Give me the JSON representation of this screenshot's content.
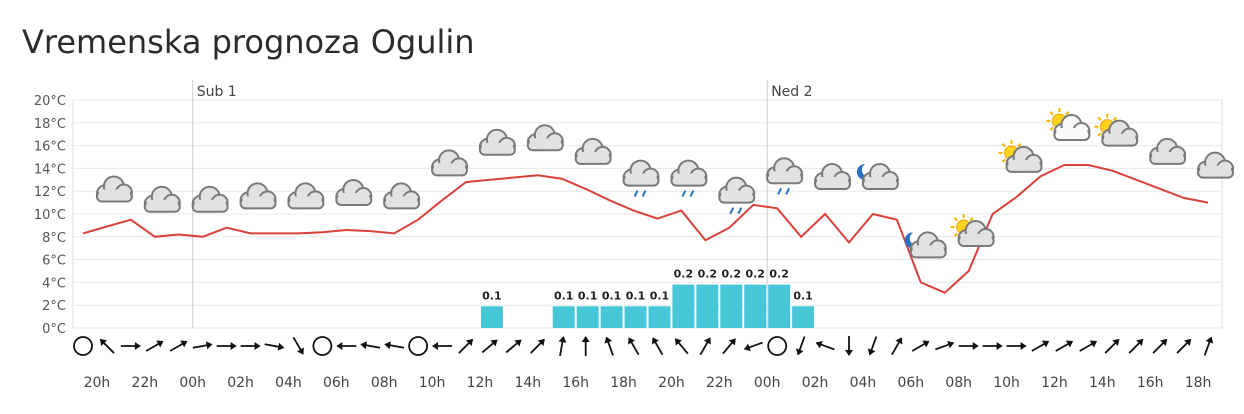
{
  "chart_data": {
    "type": "weather",
    "title": "Vremenska prognoza Ogulin",
    "days": [
      {
        "label": "Sub 1",
        "index": 5
      },
      {
        "label": "Ned 2",
        "index": 29
      }
    ],
    "categories": [
      null,
      "20h",
      null,
      "22h",
      null,
      "00h",
      null,
      "02h",
      null,
      "04h",
      null,
      "06h",
      null,
      "08h",
      null,
      "10h",
      null,
      "12h",
      null,
      "14h",
      null,
      "16h",
      null,
      "18h",
      null,
      "20h",
      null,
      "22h",
      null,
      "00h",
      null,
      "02h",
      null,
      "04h",
      null,
      "06h",
      null,
      "08h",
      null,
      "10h",
      null,
      "12h",
      null,
      "14h",
      null,
      "16h",
      null,
      "18h"
    ],
    "series": [
      {
        "name": "temperature",
        "color": "#d9413a",
        "values": [
          8.3,
          8.9,
          9.5,
          8.0,
          8.2,
          8.0,
          8.8,
          8.3,
          8.3,
          8.3,
          8.4,
          8.6,
          8.5,
          8.3,
          9.5,
          11.2,
          12.8,
          13.0,
          13.2,
          13.4,
          13.1,
          12.2,
          11.2,
          10.3,
          9.6,
          10.3,
          7.7,
          8.8,
          10.8,
          10.5,
          8.0,
          10.0,
          7.5,
          10.0,
          9.5,
          4.0,
          3.1,
          5.0,
          10.0,
          11.5,
          13.3,
          14.3,
          14.3,
          13.8,
          13.0,
          12.2,
          11.4,
          11.0
        ]
      },
      {
        "name": "precipitation",
        "color": "#47c6d8",
        "axis": "y2",
        "values": [
          0,
          0,
          0,
          0,
          0,
          0,
          0,
          0,
          0,
          0,
          0,
          0,
          0,
          0,
          0,
          0,
          0,
          0.1,
          0,
          0,
          0.1,
          0.1,
          0.1,
          0.1,
          0.1,
          0.2,
          0.2,
          0.2,
          0.2,
          0.2,
          0.1,
          0,
          0,
          0,
          0,
          0,
          0,
          0,
          0,
          0,
          0,
          0,
          0,
          0,
          0,
          0,
          0,
          0
        ]
      }
    ],
    "wind": [
      null,
      315,
      90,
      60,
      60,
      80,
      90,
      90,
      100,
      150,
      null,
      270,
      280,
      280,
      null,
      270,
      45,
      50,
      50,
      45,
      10,
      0,
      340,
      330,
      330,
      320,
      30,
      40,
      250,
      null,
      200,
      290,
      180,
      200,
      30,
      60,
      70,
      90,
      90,
      90,
      60,
      60,
      60,
      45,
      45,
      45,
      45,
      20
    ],
    "ylim": [
      0,
      20
    ],
    "yticks": [
      {
        "value": 0,
        "label": "0°C"
      },
      {
        "value": 2,
        "label": "2°C"
      },
      {
        "value": 4,
        "label": "4°C"
      },
      {
        "value": 6,
        "label": "6°C"
      },
      {
        "value": 8,
        "label": "8°C"
      },
      {
        "value": 10,
        "label": "10°C"
      },
      {
        "value": 12,
        "label": "12°C"
      },
      {
        "value": 14,
        "label": "14°C"
      },
      {
        "value": 16,
        "label": "16°C"
      },
      {
        "value": 18,
        "label": "18°C"
      },
      {
        "value": 20,
        "label": "20°C"
      }
    ],
    "y2lim": [
      0,
      1.05
    ],
    "grid": true
  }
}
